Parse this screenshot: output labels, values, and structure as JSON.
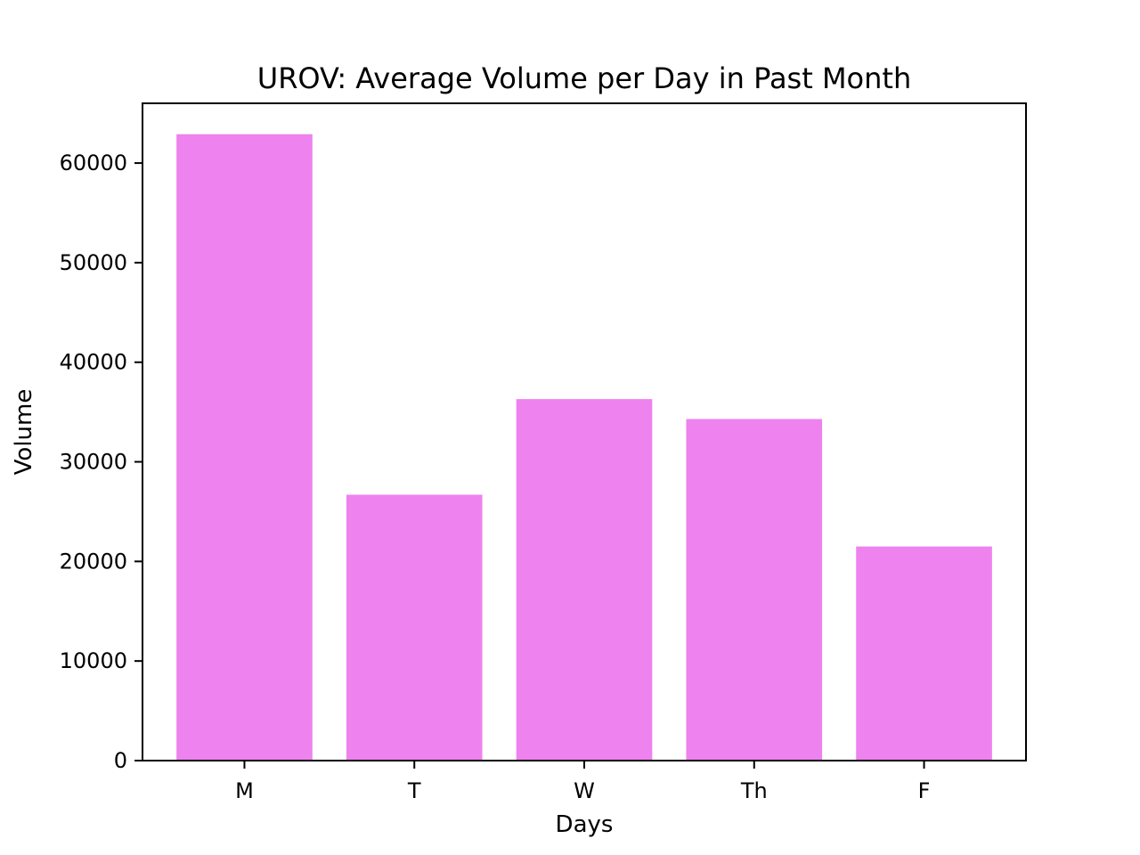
{
  "chart_data": {
    "type": "bar",
    "title": "UROV: Average Volume per Day in Past Month",
    "xlabel": "Days",
    "ylabel": "Volume",
    "categories": [
      "M",
      "T",
      "W",
      "Th",
      "F"
    ],
    "values": [
      62900,
      26700,
      36300,
      34300,
      21500
    ],
    "ylim": [
      0,
      66000
    ],
    "yticks": [
      0,
      10000,
      20000,
      30000,
      40000,
      50000,
      60000
    ],
    "ytick_labels": [
      "0",
      "10000",
      "20000",
      "30000",
      "40000",
      "50000",
      "60000"
    ],
    "grid": false,
    "legend": "none",
    "bar_color": "#ee82ee",
    "axis_color": "#000000",
    "background_color": "#ffffff"
  }
}
